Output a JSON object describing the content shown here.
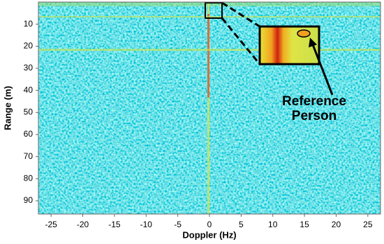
{
  "chart_data": {
    "type": "heatmap",
    "x_label": "Doppler (Hz)",
    "y_label": "Range (m)",
    "xlim": [
      -27,
      27
    ],
    "xticks": [
      -25,
      -20,
      -15,
      -10,
      -5,
      0,
      5,
      10,
      15,
      20,
      25
    ],
    "ylim": [
      0,
      96
    ],
    "yticks": [
      10,
      20,
      30,
      40,
      50,
      60,
      70,
      80,
      90
    ],
    "y_inverted": true,
    "annotation": [
      "Reference",
      "Person"
    ]
  }
}
